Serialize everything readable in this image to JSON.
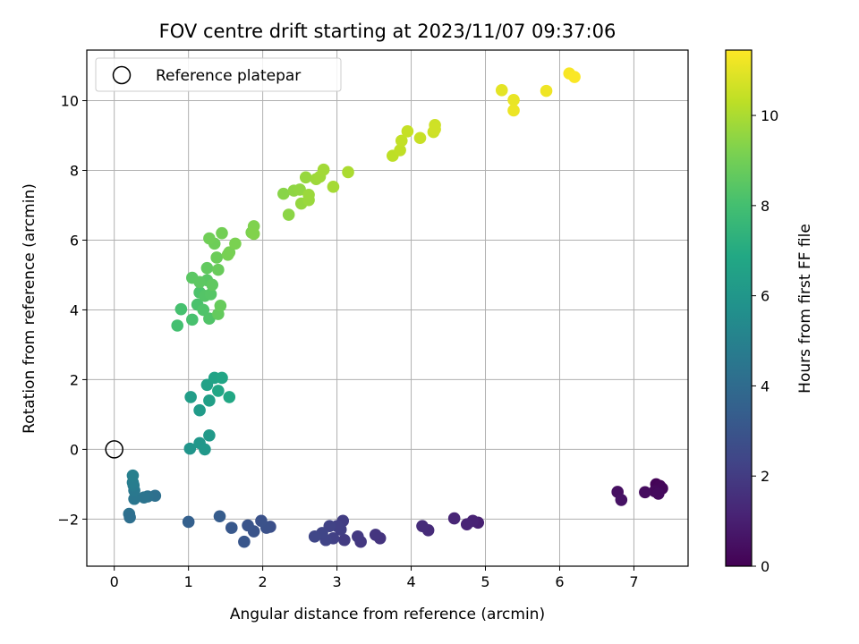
{
  "chart_data": {
    "type": "scatter",
    "title": "FOV centre drift starting at 2023/11/07 09:37:06",
    "xlabel": "Angular distance from reference (arcmin)",
    "ylabel": "Rotation from reference (arcmin)",
    "xlim": [
      -0.37,
      7.73
    ],
    "ylim": [
      -3.35,
      11.45
    ],
    "xticks": [
      0,
      1,
      2,
      3,
      4,
      5,
      6,
      7
    ],
    "yticks": [
      -2,
      0,
      2,
      4,
      6,
      8,
      10
    ],
    "xtick_labels": [
      "0",
      "1",
      "2",
      "3",
      "4",
      "5",
      "6",
      "7"
    ],
    "ytick_labels": [
      "−2",
      "0",
      "2",
      "4",
      "6",
      "8",
      "10"
    ],
    "grid": true,
    "legend": {
      "placement": "top-left",
      "entries": [
        "Reference platepar"
      ]
    },
    "reference_point": {
      "x": 0,
      "y": 0
    },
    "colorbar": {
      "label": "Hours from first FF file",
      "colormap": "viridis",
      "range": [
        0,
        11.45
      ],
      "ticks": [
        0,
        2,
        4,
        6,
        8,
        10
      ],
      "tick_labels": [
        "0",
        "2",
        "4",
        "6",
        "8",
        "10"
      ]
    },
    "series": [
      {
        "points": [
          {
            "x": 7.3,
            "y": -1.0,
            "c": 0.1
          },
          {
            "x": 7.35,
            "y": -1.05,
            "c": 0.15
          },
          {
            "x": 7.38,
            "y": -1.12,
            "c": 0.2
          },
          {
            "x": 7.28,
            "y": -1.2,
            "c": 0.25
          },
          {
            "x": 7.33,
            "y": -1.27,
            "c": 0.3
          },
          {
            "x": 7.15,
            "y": -1.23,
            "c": 0.35
          },
          {
            "x": 6.78,
            "y": -1.22,
            "c": 0.45
          },
          {
            "x": 6.83,
            "y": -1.45,
            "c": 0.55
          },
          {
            "x": 4.9,
            "y": -2.1,
            "c": 1.0
          },
          {
            "x": 4.83,
            "y": -2.05,
            "c": 1.1
          },
          {
            "x": 4.75,
            "y": -2.15,
            "c": 1.15
          },
          {
            "x": 4.58,
            "y": -1.98,
            "c": 1.2
          },
          {
            "x": 4.23,
            "y": -2.32,
            "c": 1.4
          },
          {
            "x": 4.15,
            "y": -2.2,
            "c": 1.45
          },
          {
            "x": 3.58,
            "y": -2.55,
            "c": 1.7
          },
          {
            "x": 3.52,
            "y": -2.45,
            "c": 1.75
          },
          {
            "x": 3.32,
            "y": -2.65,
            "c": 1.85
          },
          {
            "x": 3.28,
            "y": -2.5,
            "c": 1.9
          },
          {
            "x": 3.1,
            "y": -2.6,
            "c": 2.0
          },
          {
            "x": 3.08,
            "y": -2.05,
            "c": 2.05
          },
          {
            "x": 3.05,
            "y": -2.3,
            "c": 2.1
          },
          {
            "x": 3.0,
            "y": -2.2,
            "c": 2.15
          },
          {
            "x": 2.95,
            "y": -2.55,
            "c": 2.2
          },
          {
            "x": 2.9,
            "y": -2.2,
            "c": 2.25
          },
          {
            "x": 2.85,
            "y": -2.6,
            "c": 2.3
          },
          {
            "x": 2.8,
            "y": -2.4,
            "c": 2.35
          },
          {
            "x": 2.7,
            "y": -2.5,
            "c": 2.4
          },
          {
            "x": 2.1,
            "y": -2.22,
            "c": 2.8
          },
          {
            "x": 2.05,
            "y": -2.25,
            "c": 2.85
          },
          {
            "x": 1.98,
            "y": -2.05,
            "c": 2.9
          },
          {
            "x": 1.88,
            "y": -2.35,
            "c": 2.95
          },
          {
            "x": 1.8,
            "y": -2.18,
            "c": 3.0
          },
          {
            "x": 1.75,
            "y": -2.65,
            "c": 3.05
          },
          {
            "x": 1.58,
            "y": -2.25,
            "c": 3.15
          },
          {
            "x": 1.42,
            "y": -1.92,
            "c": 3.3
          },
          {
            "x": 1.0,
            "y": -2.08,
            "c": 3.5
          },
          {
            "x": 0.55,
            "y": -1.33,
            "c": 4.2
          },
          {
            "x": 0.45,
            "y": -1.35,
            "c": 4.3
          },
          {
            "x": 0.4,
            "y": -1.38,
            "c": 4.4
          },
          {
            "x": 0.27,
            "y": -1.42,
            "c": 4.5
          },
          {
            "x": 0.27,
            "y": -1.18,
            "c": 4.6
          },
          {
            "x": 0.26,
            "y": -1.03,
            "c": 4.7
          },
          {
            "x": 0.25,
            "y": -0.95,
            "c": 4.8
          },
          {
            "x": 0.25,
            "y": -0.75,
            "c": 4.9
          },
          {
            "x": 0.2,
            "y": -1.85,
            "c": 4.25
          },
          {
            "x": 0.21,
            "y": -1.95,
            "c": 4.15
          },
          {
            "x": 1.02,
            "y": 0.02,
            "c": 5.9
          },
          {
            "x": 1.15,
            "y": 0.18,
            "c": 6.0
          },
          {
            "x": 1.22,
            "y": 0.0,
            "c": 6.05
          },
          {
            "x": 1.28,
            "y": 0.4,
            "c": 6.1
          },
          {
            "x": 1.15,
            "y": 1.12,
            "c": 6.2
          },
          {
            "x": 1.03,
            "y": 1.5,
            "c": 6.3
          },
          {
            "x": 1.28,
            "y": 1.4,
            "c": 6.4
          },
          {
            "x": 1.25,
            "y": 1.85,
            "c": 6.5
          },
          {
            "x": 1.35,
            "y": 2.05,
            "c": 6.6
          },
          {
            "x": 1.45,
            "y": 2.05,
            "c": 6.7
          },
          {
            "x": 1.4,
            "y": 1.68,
            "c": 6.75
          },
          {
            "x": 1.55,
            "y": 1.5,
            "c": 6.8
          },
          {
            "x": 0.85,
            "y": 3.55,
            "c": 8.0
          },
          {
            "x": 0.9,
            "y": 4.02,
            "c": 8.05
          },
          {
            "x": 1.05,
            "y": 3.72,
            "c": 8.1
          },
          {
            "x": 1.12,
            "y": 4.15,
            "c": 8.15
          },
          {
            "x": 1.15,
            "y": 4.5,
            "c": 8.2
          },
          {
            "x": 1.2,
            "y": 4.0,
            "c": 8.25
          },
          {
            "x": 1.28,
            "y": 3.75,
            "c": 8.3
          },
          {
            "x": 1.22,
            "y": 4.4,
            "c": 8.35
          },
          {
            "x": 1.3,
            "y": 4.45,
            "c": 8.4
          },
          {
            "x": 1.25,
            "y": 4.85,
            "c": 8.45
          },
          {
            "x": 1.05,
            "y": 4.92,
            "c": 8.5
          },
          {
            "x": 1.15,
            "y": 4.8,
            "c": 8.55
          },
          {
            "x": 1.32,
            "y": 4.72,
            "c": 8.6
          },
          {
            "x": 1.25,
            "y": 5.2,
            "c": 8.65
          },
          {
            "x": 1.4,
            "y": 3.88,
            "c": 8.7
          },
          {
            "x": 1.43,
            "y": 4.12,
            "c": 8.75
          },
          {
            "x": 1.4,
            "y": 5.15,
            "c": 8.8
          },
          {
            "x": 1.38,
            "y": 5.5,
            "c": 8.85
          },
          {
            "x": 1.35,
            "y": 5.9,
            "c": 8.9
          },
          {
            "x": 1.28,
            "y": 6.05,
            "c": 8.95
          },
          {
            "x": 1.45,
            "y": 6.2,
            "c": 9.0
          },
          {
            "x": 1.55,
            "y": 5.65,
            "c": 9.05
          },
          {
            "x": 1.53,
            "y": 5.58,
            "c": 9.1
          },
          {
            "x": 1.63,
            "y": 5.9,
            "c": 9.15
          },
          {
            "x": 1.85,
            "y": 6.22,
            "c": 9.2
          },
          {
            "x": 1.88,
            "y": 6.4,
            "c": 9.25
          },
          {
            "x": 1.88,
            "y": 6.18,
            "c": 9.28
          },
          {
            "x": 2.28,
            "y": 7.33,
            "c": 9.4
          },
          {
            "x": 2.35,
            "y": 6.73,
            "c": 9.45
          },
          {
            "x": 2.42,
            "y": 7.42,
            "c": 9.5
          },
          {
            "x": 2.5,
            "y": 7.45,
            "c": 9.55
          },
          {
            "x": 2.52,
            "y": 7.05,
            "c": 9.6
          },
          {
            "x": 2.58,
            "y": 7.8,
            "c": 9.65
          },
          {
            "x": 2.62,
            "y": 7.15,
            "c": 9.7
          },
          {
            "x": 2.62,
            "y": 7.3,
            "c": 9.72
          },
          {
            "x": 2.72,
            "y": 7.75,
            "c": 9.75
          },
          {
            "x": 2.77,
            "y": 7.82,
            "c": 9.8
          },
          {
            "x": 2.82,
            "y": 8.02,
            "c": 9.85
          },
          {
            "x": 2.95,
            "y": 7.53,
            "c": 9.9
          },
          {
            "x": 3.15,
            "y": 7.95,
            "c": 10.0
          },
          {
            "x": 3.75,
            "y": 8.42,
            "c": 10.3
          },
          {
            "x": 3.85,
            "y": 8.58,
            "c": 10.35
          },
          {
            "x": 3.87,
            "y": 8.85,
            "c": 10.4
          },
          {
            "x": 3.95,
            "y": 9.12,
            "c": 10.45
          },
          {
            "x": 4.12,
            "y": 8.93,
            "c": 10.5
          },
          {
            "x": 4.3,
            "y": 9.1,
            "c": 10.55
          },
          {
            "x": 4.32,
            "y": 9.3,
            "c": 10.6
          },
          {
            "x": 4.32,
            "y": 9.18,
            "c": 10.62
          },
          {
            "x": 5.22,
            "y": 10.3,
            "c": 11.0
          },
          {
            "x": 5.38,
            "y": 10.02,
            "c": 11.1
          },
          {
            "x": 5.38,
            "y": 9.72,
            "c": 11.15
          },
          {
            "x": 5.82,
            "y": 10.28,
            "c": 11.2
          },
          {
            "x": 6.13,
            "y": 10.78,
            "c": 11.35
          },
          {
            "x": 6.2,
            "y": 10.68,
            "c": 11.4
          }
        ]
      }
    ]
  }
}
